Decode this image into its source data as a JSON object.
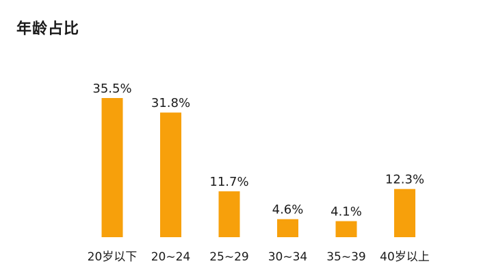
{
  "chart_data": {
    "type": "bar",
    "title": "年龄占比",
    "categories": [
      "20岁以下",
      "20~24",
      "25~29",
      "30~34",
      "35~39",
      "40岁以上"
    ],
    "values": [
      35.5,
      31.8,
      11.7,
      4.6,
      4.1,
      12.3
    ],
    "value_labels": [
      "35.5%",
      "31.8%",
      "11.7%",
      "4.6%",
      "4.1%",
      "12.3%"
    ],
    "unit": "%",
    "ylim": [
      0,
      35.5
    ],
    "grid": false,
    "legend": "none",
    "bar_color": "#F7A00B"
  }
}
